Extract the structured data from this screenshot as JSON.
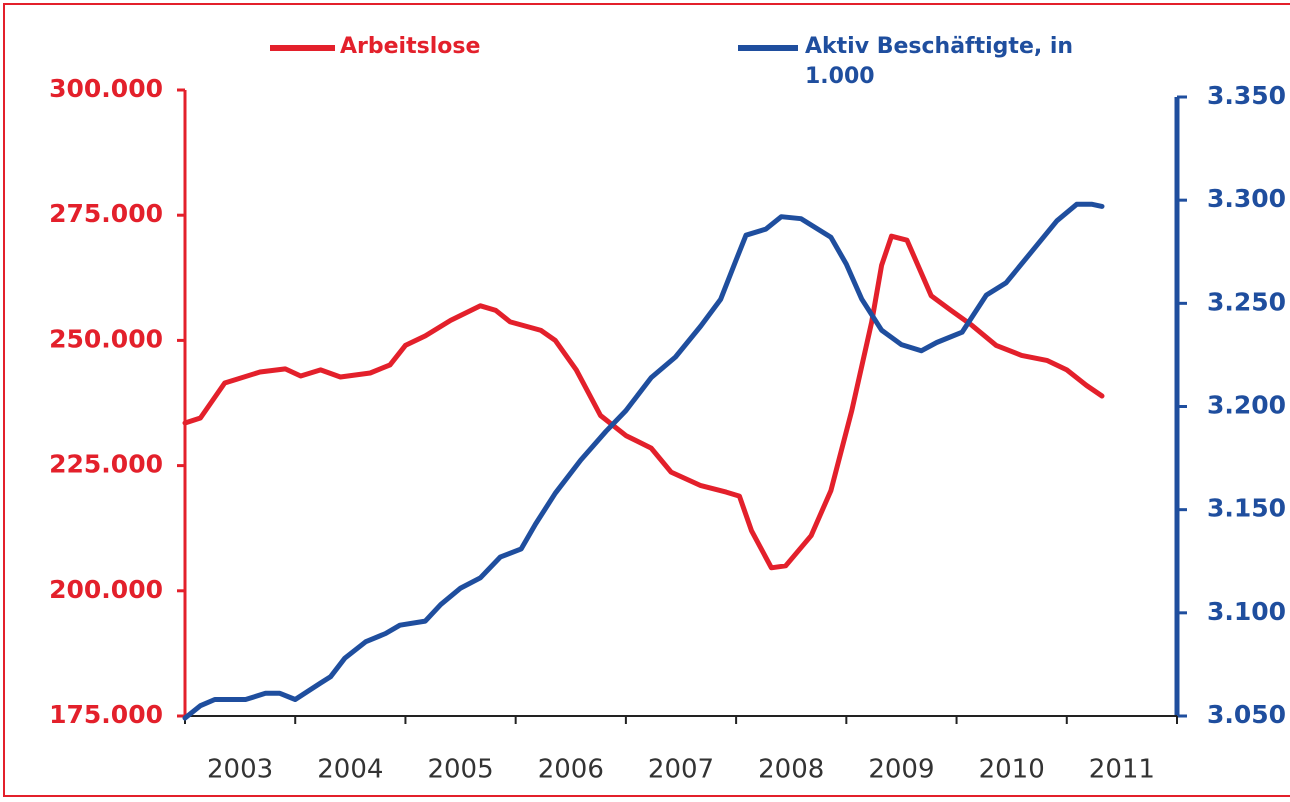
{
  "chart_data": {
    "type": "line",
    "categories": [
      "2003",
      "2004",
      "2005",
      "2006",
      "2007",
      "2008",
      "2009",
      "2010",
      "2011"
    ],
    "xlim": [
      2003,
      2012
    ],
    "ylim": [
      175000,
      300000
    ],
    "yticks": [
      {
        "value": 175000,
        "label": "175.000"
      },
      {
        "value": 200000,
        "label": "200.000"
      },
      {
        "value": 225000,
        "label": "225.000"
      },
      {
        "value": 250000,
        "label": "250.000"
      },
      {
        "value": 275000,
        "label": "275.000"
      },
      {
        "value": 300000,
        "label": "300.000"
      }
    ],
    "y2lim": [
      3050,
      3350
    ],
    "y2ticks": [
      {
        "value": 3050,
        "label": "3.050"
      },
      {
        "value": 3100,
        "label": "3.100"
      },
      {
        "value": 3150,
        "label": "3.150"
      },
      {
        "value": 3200,
        "label": "3.200"
      },
      {
        "value": 3250,
        "label": "3.250"
      },
      {
        "value": 3300,
        "label": "3.300"
      },
      {
        "value": 3350,
        "label": "3.350"
      }
    ],
    "series": [
      {
        "name": "Arbeitslose",
        "color": "#e3202b",
        "axis": "y",
        "x": [
          2003.0,
          2003.14,
          2003.36,
          2003.68,
          2003.91,
          2004.05,
          2004.23,
          2004.41,
          2004.68,
          2004.86,
          2005.0,
          2005.18,
          2005.41,
          2005.68,
          2005.82,
          2005.95,
          2006.23,
          2006.36,
          2006.55,
          2006.77,
          2007.0,
          2007.23,
          2007.41,
          2007.68,
          2007.91,
          2008.03,
          2008.14,
          2008.32,
          2008.45,
          2008.68,
          2008.86,
          2009.05,
          2009.23,
          2009.32,
          2009.41,
          2009.55,
          2009.77,
          2009.95,
          2010.14,
          2010.36,
          2010.59,
          2010.82,
          2011.0,
          2011.18,
          2011.32
        ],
        "values": [
          233500,
          234500,
          241500,
          243700,
          244300,
          242900,
          244100,
          242700,
          243500,
          245100,
          249000,
          250900,
          254000,
          256900,
          256000,
          253700,
          252000,
          250000,
          244100,
          235000,
          231000,
          228500,
          223700,
          221000,
          219700,
          218900,
          212000,
          204600,
          205000,
          211000,
          220000,
          236000,
          253700,
          265000,
          270800,
          270000,
          258900,
          256000,
          253000,
          249000,
          247000,
          246000,
          244100,
          241000,
          238900
        ]
      },
      {
        "name": "Aktiv Beschäftigte, in 1.000",
        "color": "#1f4e9e",
        "axis": "y2",
        "x": [
          2003.0,
          2003.14,
          2003.27,
          2003.55,
          2003.73,
          2003.86,
          2004.0,
          2004.23,
          2004.32,
          2004.45,
          2004.64,
          2004.82,
          2004.95,
          2005.18,
          2005.32,
          2005.5,
          2005.68,
          2005.86,
          2006.05,
          2006.18,
          2006.36,
          2006.59,
          2006.82,
          2007.0,
          2007.23,
          2007.45,
          2007.68,
          2007.86,
          2008.0,
          2008.09,
          2008.27,
          2008.41,
          2008.59,
          2008.86,
          2009.0,
          2009.14,
          2009.32,
          2009.5,
          2009.68,
          2009.82,
          2010.05,
          2010.27,
          2010.45,
          2010.68,
          2010.91,
          2011.09,
          2011.23,
          2011.32
        ],
        "values": [
          3049,
          3055,
          3058,
          3058,
          3061,
          3061,
          3058,
          3066,
          3069,
          3078,
          3086,
          3090,
          3094,
          3096,
          3104,
          3112,
          3117,
          3127,
          3131,
          3143,
          3158,
          3174,
          3188,
          3198,
          3214,
          3224,
          3239,
          3252,
          3271,
          3283,
          3286,
          3292,
          3291,
          3282,
          3269,
          3252,
          3237,
          3230,
          3227,
          3231,
          3236,
          3254,
          3260,
          3275,
          3290,
          3298,
          3298,
          3297
        ]
      }
    ]
  }
}
